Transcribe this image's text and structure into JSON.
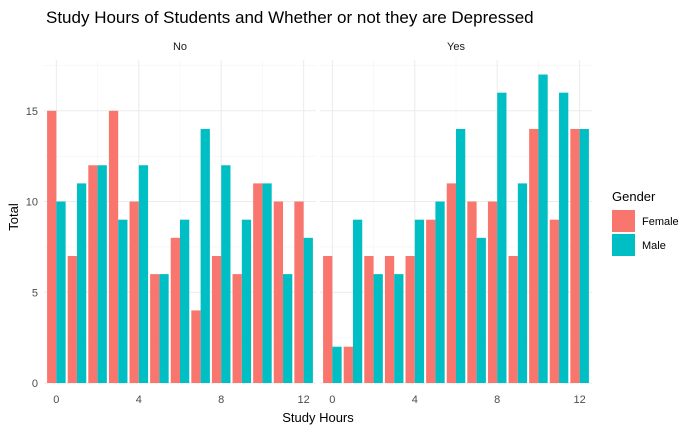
{
  "chart_data": {
    "type": "bar",
    "title": "Study Hours of Students and Whether or not they are Depressed",
    "xlabel": "Study Hours",
    "ylabel": "Total",
    "x": [
      0,
      1,
      2,
      3,
      4,
      5,
      6,
      7,
      8,
      9,
      10,
      11,
      12
    ],
    "x_ticks": [
      0,
      4,
      8,
      12
    ],
    "y_ticks": [
      0,
      5,
      10,
      15
    ],
    "ylim": [
      0,
      17.8
    ],
    "xlim": [
      -0.6,
      12.6
    ],
    "grid": true,
    "legend": {
      "title": "Gender",
      "position": "right",
      "entries": [
        "Female",
        "Male"
      ]
    },
    "series_colors": {
      "Female": "#F8766D",
      "Male": "#00BFC4"
    },
    "facets": [
      {
        "label": "No",
        "series": [
          {
            "name": "Female",
            "values": [
              15,
              7,
              12,
              15,
              10,
              6,
              8,
              4,
              7,
              6,
              11,
              10,
              10
            ]
          },
          {
            "name": "Male",
            "values": [
              10,
              11,
              12,
              9,
              12,
              6,
              9,
              14,
              12,
              9,
              11,
              6,
              8
            ]
          }
        ]
      },
      {
        "label": "Yes",
        "series": [
          {
            "name": "Female",
            "values": [
              7,
              2,
              7,
              7,
              7,
              9,
              11,
              10,
              10,
              7,
              14,
              9,
              14
            ]
          },
          {
            "name": "Male",
            "values": [
              2,
              9,
              6,
              6,
              9,
              10,
              14,
              8,
              16,
              11,
              17,
              16,
              14
            ]
          }
        ]
      }
    ]
  }
}
